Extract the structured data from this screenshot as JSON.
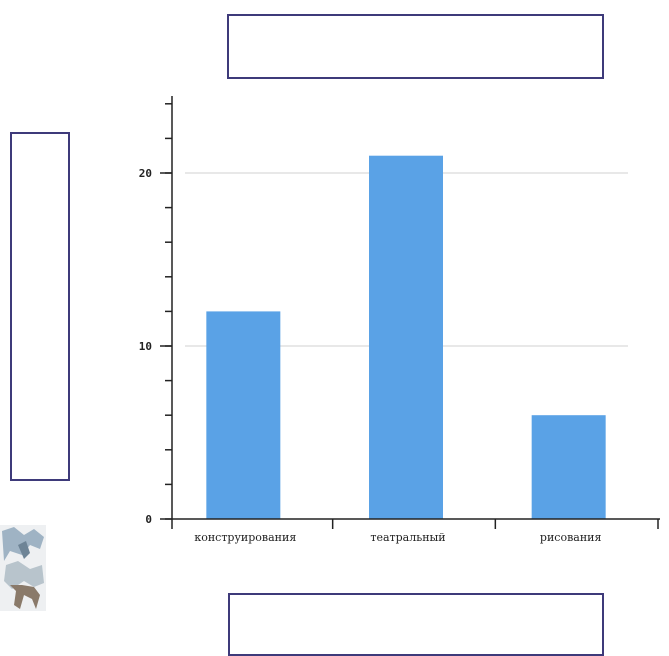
{
  "chart_data": {
    "type": "bar",
    "title": "",
    "xlabel": "",
    "ylabel": "",
    "categories": [
      "конструирования",
      "театральный",
      "рисования"
    ],
    "series": [
      {
        "values": [
          12,
          21,
          6
        ]
      }
    ],
    "ylim": [
      0,
      25
    ],
    "yticks": [
      0,
      10,
      20
    ],
    "yminor_step": 2,
    "grid": true,
    "legend": "none",
    "colors": {
      "bar": "#5aa2e6",
      "grid": "#d0d0d0",
      "axis": "#222222",
      "frame": "#3e3a7a"
    }
  }
}
